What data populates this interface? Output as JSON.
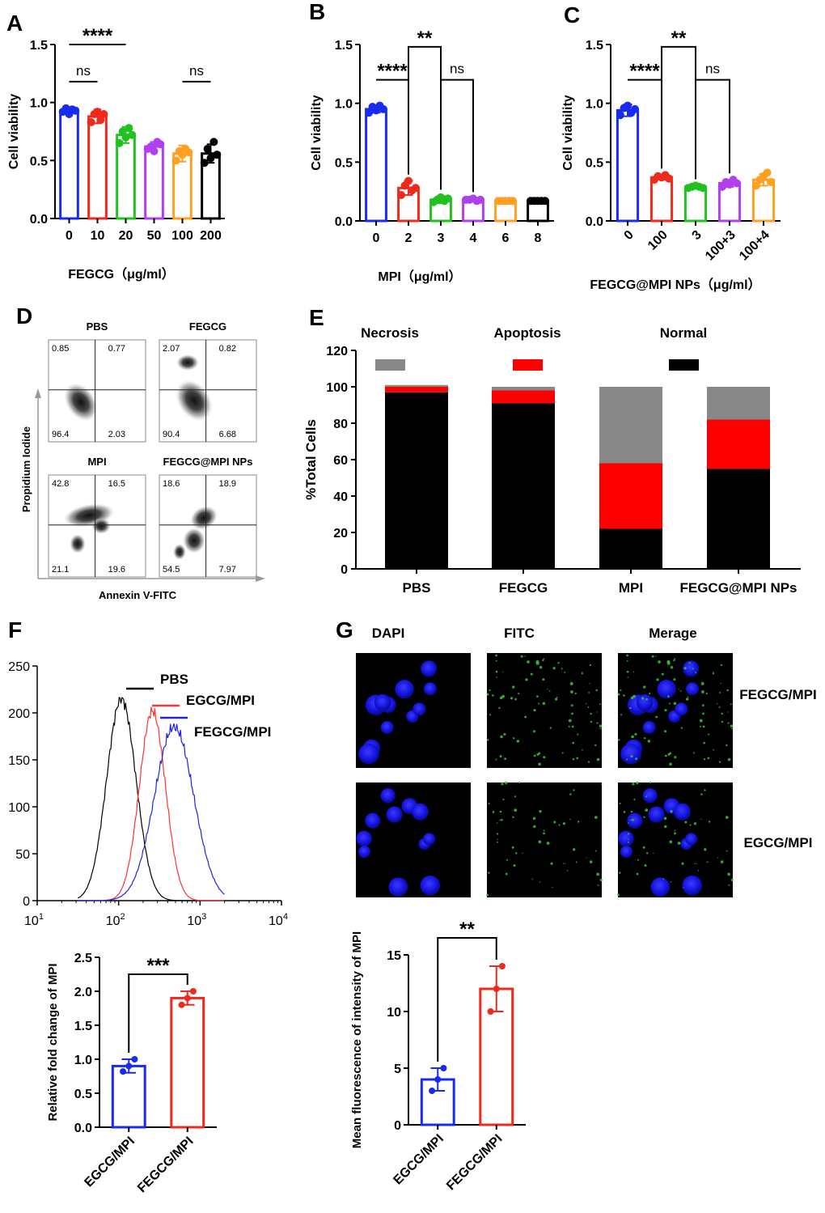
{
  "panels": [
    {
      "id": "A",
      "letter": "A"
    },
    {
      "id": "B",
      "letter": "B"
    },
    {
      "id": "C",
      "letter": "C"
    },
    {
      "id": "D",
      "letter": "D"
    },
    {
      "id": "E",
      "letter": "E"
    },
    {
      "id": "F",
      "letter": "F"
    },
    {
      "id": "G",
      "letter": "G"
    }
  ],
  "chart_data": [
    {
      "panel": "A",
      "type": "bar",
      "categories": [
        "0",
        "10",
        "20",
        "50",
        "100",
        "200"
      ],
      "values": [
        0.93,
        0.88,
        0.72,
        0.62,
        0.56,
        0.56
      ],
      "errors": [
        0.03,
        0.06,
        0.07,
        0.04,
        0.07,
        0.08
      ],
      "colors": [
        "#1a2bf0",
        "#ee2a1c",
        "#1fc21f",
        "#b03ff0",
        "#ffa020",
        "#000000"
      ],
      "points": [
        [
          0.92,
          0.95,
          0.9,
          0.94,
          0.93
        ],
        [
          0.83,
          0.9,
          0.92,
          0.85,
          0.9
        ],
        [
          0.65,
          0.75,
          0.7,
          0.78,
          0.72
        ],
        [
          0.6,
          0.62,
          0.58,
          0.66,
          0.64
        ],
        [
          0.5,
          0.58,
          0.55,
          0.6,
          0.57
        ],
        [
          0.48,
          0.6,
          0.52,
          0.66,
          0.55
        ]
      ],
      "ylabel": "Cell viability",
      "xlabel": "FEGCG（μg/ml）",
      "ylim": [
        0,
        1.5
      ],
      "yticks": [
        "0.0",
        "0.5",
        "1.0",
        "1.5"
      ],
      "annotations": [
        {
          "text": "****",
          "from": 0,
          "to": 2,
          "level": 1.5
        },
        {
          "text": "ns",
          "from": 0,
          "to": 1,
          "level": 1.18
        },
        {
          "text": "ns",
          "from": 4,
          "to": 5,
          "level": 1.18
        }
      ]
    },
    {
      "panel": "B",
      "type": "bar",
      "categories": [
        "0",
        "2",
        "3",
        "4",
        "6",
        "8"
      ],
      "values": [
        0.95,
        0.28,
        0.18,
        0.18,
        0.17,
        0.17
      ],
      "errors": [
        0.03,
        0.06,
        0.03,
        0.01,
        0.01,
        0.01
      ],
      "colors": [
        "#1a2bf0",
        "#ee2a1c",
        "#1fc21f",
        "#b03ff0",
        "#ffa020",
        "#000000"
      ],
      "points": [
        [
          0.92,
          0.97,
          0.94,
          0.98,
          0.95
        ],
        [
          0.22,
          0.3,
          0.34,
          0.26,
          0.28
        ],
        [
          0.16,
          0.18,
          0.2,
          0.17,
          0.19
        ],
        [
          0.18,
          0.18,
          0.19,
          0.17,
          0.18
        ],
        [
          0.17,
          0.17,
          0.17,
          0.17,
          0.17
        ],
        [
          0.17,
          0.17,
          0.17,
          0.17,
          0.17
        ]
      ],
      "ylabel": "Cell viability",
      "xlabel": "MPI（μg/ml）",
      "ylim": [
        0,
        1.5
      ],
      "yticks": [
        "0.0",
        "0.5",
        "1.0",
        "1.5"
      ],
      "annotations": [
        {
          "text": "****",
          "from": 0,
          "to": 1,
          "level": 1.2
        },
        {
          "text": "**",
          "from": 1,
          "to": 2,
          "level": 1.48
        },
        {
          "text": "ns",
          "from": 2,
          "to": 3,
          "level": 1.2
        }
      ]
    },
    {
      "panel": "C",
      "type": "bar",
      "categories": [
        "0",
        "100",
        "3",
        "100+3",
        "100+4"
      ],
      "values": [
        0.94,
        0.37,
        0.29,
        0.32,
        0.35
      ],
      "errors": [
        0.05,
        0.02,
        0.01,
        0.03,
        0.05
      ],
      "colors": [
        "#1a2bf0",
        "#ee2a1c",
        "#1fc21f",
        "#b03ff0",
        "#ffa020"
      ],
      "points": [
        [
          0.9,
          0.96,
          0.98,
          0.92,
          0.95
        ],
        [
          0.35,
          0.38,
          0.37,
          0.39,
          0.36
        ],
        [
          0.28,
          0.29,
          0.3,
          0.29,
          0.28
        ],
        [
          0.29,
          0.33,
          0.31,
          0.35,
          0.32
        ],
        [
          0.3,
          0.35,
          0.38,
          0.41,
          0.33
        ]
      ],
      "ylabel": "Cell viability",
      "xlabel": "FEGCG@MPI NPs（μg/ml）",
      "ylim": [
        0,
        1.5
      ],
      "yticks": [
        "0.0",
        "0.5",
        "1.0",
        "1.5"
      ],
      "annotations": [
        {
          "text": "****",
          "from": 0,
          "to": 1,
          "level": 1.2
        },
        {
          "text": "**",
          "from": 1,
          "to": 2,
          "level": 1.48
        },
        {
          "text": "ns",
          "from": 2,
          "to": 3,
          "level": 1.2
        }
      ]
    },
    {
      "panel": "E",
      "type": "stacked-bar",
      "categories": [
        "PBS",
        "FEGCG",
        "MPI",
        "FEGCG@MPI NPs"
      ],
      "series": [
        {
          "name": "Normal",
          "color": "#000000",
          "values": [
            97,
            91,
            22,
            55
          ]
        },
        {
          "name": "Apoptosis",
          "color": "#ff0000",
          "values": [
            3,
            7,
            36,
            27
          ]
        },
        {
          "name": "Necrosis",
          "color": "#888888",
          "values": [
            1,
            2,
            42,
            18
          ]
        }
      ],
      "ylabel": "%Total Cells",
      "ylim": [
        0,
        120
      ],
      "yticks": [
        "0",
        "20",
        "40",
        "60",
        "80",
        "100",
        "120"
      ],
      "legend_order": [
        "Necrosis",
        "Apoptosis",
        "Normal"
      ]
    },
    {
      "panel": "F-histogram",
      "type": "line",
      "xscale": "log",
      "xlim": [
        10,
        10000
      ],
      "ylim": [
        0,
        250
      ],
      "xticks": [
        "10",
        "10",
        "10",
        "10"
      ],
      "xtick_exp": [
        "1",
        "2",
        "3",
        "4"
      ],
      "yticks": [
        "0",
        "50",
        "100",
        "150",
        "200",
        "250"
      ],
      "series": [
        {
          "name": "PBS",
          "color": "#000000",
          "peak": 108,
          "height": 215,
          "width": 0.18
        },
        {
          "name": "EGCG/MPI",
          "color": "#ff3333",
          "peak": 260,
          "height": 202,
          "width": 0.16
        },
        {
          "name": "FEGCG/MPI",
          "color": "#2222dd",
          "peak": 480,
          "height": 185,
          "width": 0.24
        }
      ]
    },
    {
      "panel": "F-bar",
      "type": "bar",
      "categories": [
        "EGCG/MPI",
        "FEGCG/MPI"
      ],
      "values": [
        0.9,
        1.9
      ],
      "errors": [
        0.1,
        0.1
      ],
      "colors": [
        "#1a2bf0",
        "#ee2a1c"
      ],
      "points": [
        [
          0.82,
          0.9,
          1.0
        ],
        [
          1.8,
          1.9,
          2.0
        ]
      ],
      "ylabel": "Relative fold change of MPI",
      "ylim": [
        0,
        2.5
      ],
      "yticks": [
        "0.0",
        "0.5",
        "1.0",
        "1.5",
        "2.0",
        "2.5"
      ],
      "annotations": [
        {
          "text": "***",
          "from": 0,
          "to": 1,
          "level": 2.25
        }
      ]
    },
    {
      "panel": "G-bar",
      "type": "bar",
      "categories": [
        "EGCG/MPI",
        "FEGCG/MPI"
      ],
      "values": [
        4,
        12
      ],
      "errors": [
        1,
        2
      ],
      "colors": [
        "#1a2bf0",
        "#ee2a1c"
      ],
      "points": [
        [
          3,
          4,
          5
        ],
        [
          10,
          12,
          14
        ]
      ],
      "ylabel": "Mean fluorescence of intensity of MPI",
      "ylim": [
        0,
        15
      ],
      "yticks": [
        "0",
        "5",
        "10",
        "15"
      ],
      "annotations": [
        {
          "text": "**",
          "from": 0,
          "to": 1,
          "level": 16.5
        }
      ]
    }
  ],
  "flow": {
    "plots": [
      {
        "title": "PBS",
        "q_ul": "0.85",
        "q_ur": "0.77",
        "q_ll": "96.4",
        "q_lr": "2.03"
      },
      {
        "title": "FEGCG",
        "q_ul": "2.07",
        "q_ur": "0.82",
        "q_ll": "90.4",
        "q_lr": "6.68"
      },
      {
        "title": "MPI",
        "q_ul": "42.8",
        "q_ur": "16.5",
        "q_ll": "21.1",
        "q_lr": "19.6"
      },
      {
        "title": "FEGCG@MPI NPs",
        "q_ul": "18.6",
        "q_ur": "18.9",
        "q_ll": "54.5",
        "q_lr": "7.97"
      }
    ],
    "ylabel": "Propidium Iodide",
    "xlabel": "Annexin V-FITC"
  },
  "microscopy": {
    "columns": [
      "DAPI",
      "FITC",
      "Merage"
    ],
    "rows": [
      "FEGCG/MPI",
      "EGCG/MPI"
    ]
  }
}
